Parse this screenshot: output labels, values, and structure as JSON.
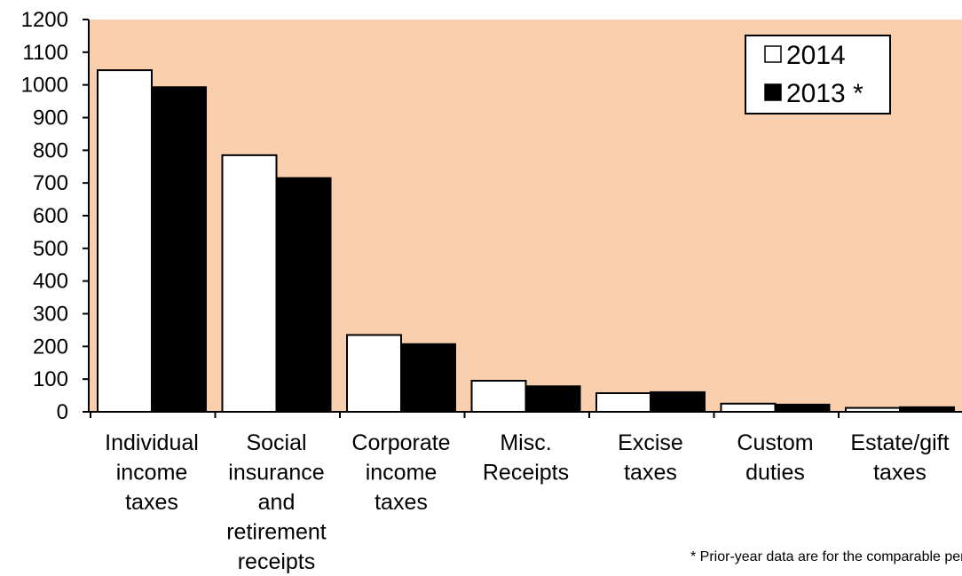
{
  "chart_data": {
    "type": "bar",
    "categories": [
      [
        "Individual",
        "income",
        "taxes"
      ],
      [
        "Social",
        "insurance",
        "and",
        "retirement",
        "receipts"
      ],
      [
        "Corporate",
        "income",
        "taxes"
      ],
      [
        "Misc.",
        "Receipts"
      ],
      [
        "Excise",
        "taxes"
      ],
      [
        "Custom",
        "duties"
      ],
      [
        "Estate/gift",
        "taxes"
      ]
    ],
    "series": [
      {
        "name": "2014",
        "color": "#ffffff",
        "values": [
          1045,
          785,
          235,
          95,
          57,
          25,
          12
        ]
      },
      {
        "name": "2013 *",
        "color": "#000000",
        "values": [
          993,
          715,
          207,
          78,
          60,
          22,
          14
        ]
      }
    ],
    "ylim": [
      0,
      1200
    ],
    "yticks": [
      0,
      100,
      200,
      300,
      400,
      500,
      600,
      700,
      800,
      900,
      1000,
      1100,
      1200
    ],
    "legend_position": "top-right",
    "plot_background": "#f9cfae",
    "grid": false
  },
  "footnote": "* Prior-year data are for the comparable period"
}
